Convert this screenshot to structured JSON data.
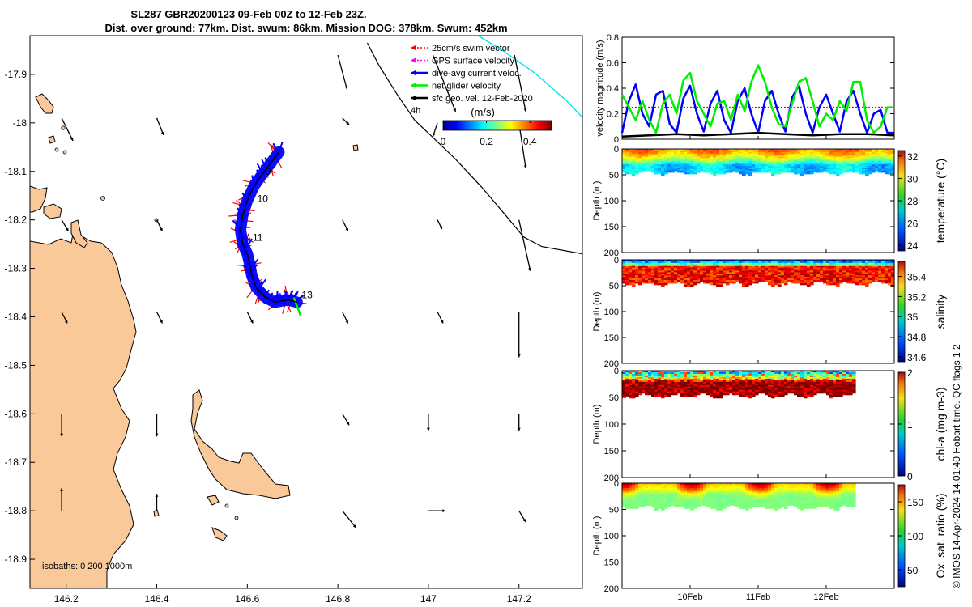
{
  "header": {
    "title_line1": "SL287 GBR20200123 09-Feb 00Z to 12-Feb 23Z.",
    "title_line2": "Dist. over ground: 77km. Dist. swum: 86km. Mission DOG: 378km. Swum: 452km"
  },
  "side_caption": "© IMOS 14-Apr-2024 14:01:40 Hobart time. QC flags 1  2",
  "colors": {
    "land": "#f9c99a",
    "swim": "#ff0000",
    "gps": "#ff00ff",
    "dive": "#0000ff",
    "net": "#00ee00",
    "sfc": "#000000",
    "contour": "#00e5ee"
  },
  "chart_data": [
    {
      "type": "scatter",
      "name": "map",
      "xlim": [
        146.12,
        147.34
      ],
      "ylim": [
        -18.96,
        -17.82
      ],
      "xticks": [
        "146.2",
        "146.4",
        "146.6",
        "146.8",
        "147",
        "147.2"
      ],
      "xtick_values": [
        146.2,
        146.4,
        146.6,
        146.8,
        147.0,
        147.2
      ],
      "yticks": [
        "-17.9",
        "-18",
        "-18.1",
        "-18.2",
        "-18.3",
        "-18.4",
        "-18.5",
        "-18.6",
        "-18.7",
        "-18.8",
        "-18.9"
      ],
      "ytick_values": [
        -17.9,
        -18.0,
        -18.1,
        -18.2,
        -18.3,
        -18.4,
        -18.5,
        -18.6,
        -18.7,
        -18.8,
        -18.9
      ],
      "legend": [
        {
          "label": "25cm/s swim vector",
          "color": "#ff0000",
          "style": "dotted"
        },
        {
          "label": "GPS surface velocity",
          "color": "#ff00ff",
          "style": "dotted"
        },
        {
          "label": "dive-avg current veloc.",
          "color": "#0000ff",
          "style": "solid"
        },
        {
          "label": "net glider velocity",
          "color": "#00ee00",
          "style": "solid"
        },
        {
          "label": "sfc geo. vel. 12-Feb-2020",
          "color": "#000000",
          "style": "solid"
        }
      ],
      "legend_extra": "4h",
      "colorbar": {
        "label": "(m/s)",
        "ticks": [
          "0",
          "0.2",
          "0.4"
        ],
        "range": [
          0,
          0.5
        ]
      },
      "isobath_label": "isobaths: 0   200  1000m",
      "track": {
        "lon": [
          146.67,
          146.65,
          146.63,
          146.615,
          146.6,
          146.59,
          146.585,
          146.59,
          146.6,
          146.605,
          146.61,
          146.62,
          146.64,
          146.66,
          146.69,
          146.71
        ],
        "lat": [
          -18.06,
          -18.085,
          -18.11,
          -18.13,
          -18.16,
          -18.19,
          -18.22,
          -18.25,
          -18.27,
          -18.29,
          -18.315,
          -18.34,
          -18.36,
          -18.37,
          -18.365,
          -18.37
        ]
      },
      "day_labels": [
        {
          "text": "9",
          "lon": 146.64,
          "lat": -18.107
        },
        {
          "text": "10",
          "lon": 146.622,
          "lat": -18.163
        },
        {
          "text": "11",
          "lon": 146.612,
          "lat": -18.243
        },
        {
          "text": "13",
          "lon": 146.72,
          "lat": -18.362
        }
      ],
      "shelf_edge": {
        "lon": [
          146.865,
          146.89,
          146.93,
          146.97,
          147.01,
          147.06,
          147.12,
          147.17,
          147.21,
          147.25,
          147.34
        ],
        "lat": [
          -17.835,
          -17.88,
          -17.94,
          -17.995,
          -18.03,
          -18.075,
          -18.135,
          -18.19,
          -18.235,
          -18.255,
          -18.27
        ]
      },
      "sfc_vectors": [
        {
          "lon": 146.19,
          "lat": -17.99,
          "u": 0.01,
          "v": -0.02
        },
        {
          "lon": 146.4,
          "lat": -17.99,
          "u": 0.006,
          "v": -0.015
        },
        {
          "lon": 146.81,
          "lat": -17.99,
          "u": 0.006,
          "v": -0.006
        },
        {
          "lon": 146.8,
          "lat": -17.86,
          "u": 0.008,
          "v": -0.03
        },
        {
          "lon": 147.01,
          "lat": -17.86,
          "u": 0.02,
          "v": -0.05
        },
        {
          "lon": 147.19,
          "lat": -17.86,
          "u": 0.01,
          "v": -0.05
        },
        {
          "lon": 147.02,
          "lat": -18.0,
          "u": -0.004,
          "v": -0.012
        },
        {
          "lon": 147.2,
          "lat": -18.0,
          "u": 0.006,
          "v": -0.04
        },
        {
          "lon": 146.19,
          "lat": -18.2,
          "u": 0.006,
          "v": -0.01
        },
        {
          "lon": 146.4,
          "lat": -18.2,
          "u": 0.005,
          "v": -0.01
        },
        {
          "lon": 146.81,
          "lat": -18.2,
          "u": 0.005,
          "v": -0.01
        },
        {
          "lon": 147.02,
          "lat": -18.2,
          "u": 0.004,
          "v": -0.008
        },
        {
          "lon": 147.2,
          "lat": -18.2,
          "u": 0.01,
          "v": -0.045
        },
        {
          "lon": 146.19,
          "lat": -18.39,
          "u": 0.005,
          "v": -0.01
        },
        {
          "lon": 146.4,
          "lat": -18.39,
          "u": 0.005,
          "v": -0.01
        },
        {
          "lon": 146.6,
          "lat": -18.39,
          "u": 0.005,
          "v": -0.01
        },
        {
          "lon": 146.81,
          "lat": -18.39,
          "u": 0.005,
          "v": -0.01
        },
        {
          "lon": 147.02,
          "lat": -18.39,
          "u": 0.005,
          "v": -0.01
        },
        {
          "lon": 147.2,
          "lat": -18.39,
          "u": 0.0,
          "v": -0.04
        },
        {
          "lon": 146.19,
          "lat": -18.6,
          "u": 0.0,
          "v": -0.02
        },
        {
          "lon": 146.4,
          "lat": -18.6,
          "u": 0.0,
          "v": -0.02
        },
        {
          "lon": 146.81,
          "lat": -18.6,
          "u": 0.006,
          "v": -0.01
        },
        {
          "lon": 147.0,
          "lat": -18.6,
          "u": 0.0,
          "v": -0.015
        },
        {
          "lon": 147.2,
          "lat": -18.6,
          "u": 0.0,
          "v": -0.015
        },
        {
          "lon": 146.19,
          "lat": -18.8,
          "u": 0.0,
          "v": 0.02
        },
        {
          "lon": 146.4,
          "lat": -18.8,
          "u": 0.0,
          "v": 0.015
        },
        {
          "lon": 146.81,
          "lat": -18.8,
          "u": 0.012,
          "v": -0.015
        },
        {
          "lon": 147.0,
          "lat": -18.8,
          "u": 0.015,
          "v": 0.0
        },
        {
          "lon": 147.2,
          "lat": -18.8,
          "u": 0.006,
          "v": -0.01
        }
      ]
    },
    {
      "type": "line",
      "name": "velocity",
      "ylabel": "velocity magnitude (m/s)",
      "xlim": [
        0,
        4
      ],
      "ylim": [
        0,
        0.8
      ],
      "yticks": [
        "0",
        "0.2",
        "0.4",
        "0.6",
        "0.8"
      ],
      "ytick_values": [
        0,
        0.2,
        0.4,
        0.6,
        0.8
      ],
      "xtick_labels": [
        "10Feb",
        "11Feb",
        "12Feb"
      ],
      "xtick_values": [
        1,
        2,
        3
      ],
      "series": [
        {
          "name": "swim 25cm/s",
          "color": "#ff0000",
          "style": "dotted",
          "t": [
            0,
            4
          ],
          "values": [
            0.25,
            0.25
          ]
        },
        {
          "name": "dive-avg current",
          "color": "#0000ff",
          "style": "solid",
          "t": [
            0.0,
            0.1,
            0.2,
            0.3,
            0.4,
            0.5,
            0.6,
            0.7,
            0.8,
            0.9,
            1.0,
            1.1,
            1.2,
            1.3,
            1.4,
            1.5,
            1.6,
            1.7,
            1.8,
            1.9,
            2.0,
            2.1,
            2.2,
            2.3,
            2.4,
            2.5,
            2.6,
            2.7,
            2.8,
            2.9,
            3.0,
            3.1,
            3.2,
            3.3,
            3.4,
            3.5,
            3.6,
            3.7,
            3.8,
            3.9,
            4.0
          ],
          "values": [
            0.05,
            0.3,
            0.43,
            0.2,
            0.1,
            0.35,
            0.38,
            0.12,
            0.05,
            0.32,
            0.42,
            0.2,
            0.06,
            0.28,
            0.38,
            0.15,
            0.05,
            0.3,
            0.4,
            0.2,
            0.05,
            0.3,
            0.38,
            0.2,
            0.06,
            0.33,
            0.42,
            0.2,
            0.05,
            0.25,
            0.35,
            0.2,
            0.06,
            0.3,
            0.38,
            0.2,
            0.05,
            0.2,
            0.23,
            0.05,
            0.05
          ]
        },
        {
          "name": "net glider velocity",
          "color": "#00ee00",
          "style": "solid",
          "t": [
            0.0,
            0.1,
            0.2,
            0.3,
            0.4,
            0.5,
            0.6,
            0.7,
            0.8,
            0.9,
            1.0,
            1.1,
            1.2,
            1.3,
            1.4,
            1.5,
            1.6,
            1.7,
            1.8,
            1.9,
            2.0,
            2.1,
            2.2,
            2.3,
            2.4,
            2.5,
            2.6,
            2.7,
            2.8,
            2.9,
            3.0,
            3.1,
            3.2,
            3.3,
            3.4,
            3.5,
            3.6,
            3.7,
            3.8,
            3.9,
            4.0
          ],
          "values": [
            0.35,
            0.25,
            0.15,
            0.3,
            0.15,
            0.05,
            0.28,
            0.35,
            0.2,
            0.46,
            0.52,
            0.3,
            0.2,
            0.1,
            0.28,
            0.3,
            0.15,
            0.35,
            0.22,
            0.45,
            0.58,
            0.45,
            0.25,
            0.12,
            0.1,
            0.28,
            0.45,
            0.48,
            0.3,
            0.1,
            0.2,
            0.15,
            0.3,
            0.22,
            0.45,
            0.45,
            0.15,
            0.05,
            0.1,
            0.25,
            0.25
          ]
        },
        {
          "name": "sfc geo. vel.",
          "color": "#000000",
          "style": "solid",
          "t": [
            0.0,
            0.4,
            0.8,
            1.2,
            1.6,
            2.0,
            2.4,
            2.8,
            3.2,
            3.6,
            4.0
          ],
          "values": [
            0.02,
            0.03,
            0.04,
            0.03,
            0.04,
            0.05,
            0.04,
            0.03,
            0.04,
            0.04,
            0.03
          ]
        }
      ]
    },
    {
      "type": "heatmap",
      "name": "temperature",
      "ylabel": "Depth (m)",
      "cbar_label": "temperature (°C)",
      "cbar_ticks": [
        "32",
        "30",
        "28",
        "26",
        "24"
      ],
      "cbar_values": [
        32,
        30,
        28,
        26,
        24
      ],
      "clim": [
        23.5,
        32.5
      ],
      "yticks": [
        "0",
        "50",
        "100",
        "150",
        "200"
      ],
      "ytick_values": [
        0,
        50,
        100,
        150,
        200
      ],
      "t_end": 4.0,
      "bottom_depth": 45,
      "surface": 30.2,
      "bottom": 26.5,
      "transition_depth": 30
    },
    {
      "type": "heatmap",
      "name": "salinity",
      "ylabel": "Depth (m)",
      "cbar_label": "salinity",
      "cbar_ticks": [
        "35.4",
        "35.2",
        "35",
        "34.8",
        "34.6"
      ],
      "cbar_values": [
        35.4,
        35.2,
        35.0,
        34.8,
        34.6
      ],
      "clim": [
        34.55,
        35.55
      ],
      "yticks": [
        "0",
        "50",
        "100",
        "150",
        "200"
      ],
      "ytick_values": [
        0,
        50,
        100,
        150,
        200
      ],
      "t_end": 4.0,
      "bottom_depth": 45,
      "surface": 34.75,
      "bottom": 35.4,
      "transition_depth": 12
    },
    {
      "type": "heatmap",
      "name": "chla",
      "ylabel": "Depth (m)",
      "cbar_label": "chl-a (mg m-3)",
      "cbar_ticks": [
        "2",
        "1",
        "0"
      ],
      "cbar_values": [
        2,
        1,
        0
      ],
      "clim": [
        0,
        2
      ],
      "yticks": [
        "0",
        "50",
        "100",
        "150",
        "200"
      ],
      "ytick_values": [
        0,
        50,
        100,
        150,
        200
      ],
      "t_end": 3.45,
      "bottom_depth": 45,
      "surface": 0.6,
      "bottom": 2.0,
      "transition_depth": 20
    },
    {
      "type": "heatmap",
      "name": "oxygen",
      "ylabel": "Depth (m)",
      "cbar_label": "Ox. sat. ratio (%)",
      "cbar_ticks": [
        "150",
        "100",
        "50"
      ],
      "cbar_values": [
        150,
        100,
        50
      ],
      "clim": [
        25,
        175
      ],
      "yticks": [
        "0",
        "50",
        "100",
        "150",
        "200"
      ],
      "ytick_values": [
        0,
        50,
        100,
        150,
        200
      ],
      "t_end": 3.45,
      "bottom_depth": 45,
      "surface": 125,
      "bottom": 100,
      "transition_depth": 20
    }
  ]
}
